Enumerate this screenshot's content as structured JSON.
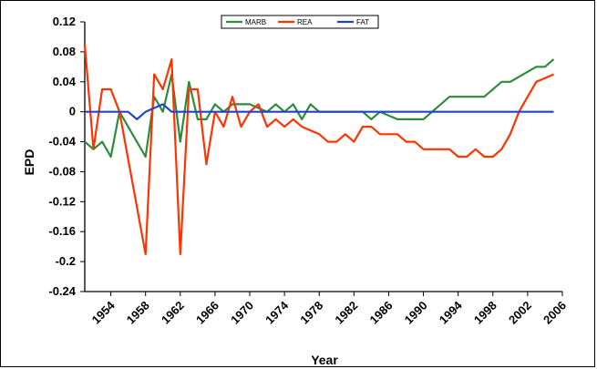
{
  "chart_data": {
    "type": "line",
    "xlabel": "Year",
    "ylabel": "EPD",
    "xlim": [
      1951,
      2006
    ],
    "ylim": [
      -0.24,
      0.12
    ],
    "y_ticks": [
      0.12,
      0.08,
      0.04,
      0,
      -0.04,
      -0.08,
      -0.12,
      -0.16,
      -0.2,
      -0.24
    ],
    "x_ticks": [
      1954,
      1958,
      1962,
      1966,
      1970,
      1974,
      1978,
      1982,
      1986,
      1990,
      1994,
      1998,
      2002,
      2006
    ],
    "grid": false,
    "legend_position": "top-center",
    "series": [
      {
        "name": "MARB",
        "color": "#2e8b3a",
        "points": [
          [
            1951,
            -0.04
          ],
          [
            1952,
            -0.05
          ],
          [
            1953,
            -0.04
          ],
          [
            1954,
            -0.06
          ],
          [
            1955,
            0
          ],
          [
            1958,
            -0.06
          ],
          [
            1959,
            0.02
          ],
          [
            1960,
            0
          ],
          [
            1961,
            0.05
          ],
          [
            1962,
            -0.04
          ],
          [
            1963,
            0.04
          ],
          [
            1964,
            -0.01
          ],
          [
            1965,
            -0.01
          ],
          [
            1966,
            0.01
          ],
          [
            1967,
            0
          ],
          [
            1968,
            0.01
          ],
          [
            1970,
            0.01
          ],
          [
            1972,
            0
          ],
          [
            1973,
            0.01
          ],
          [
            1974,
            0
          ],
          [
            1975,
            0.01
          ],
          [
            1976,
            -0.01
          ],
          [
            1977,
            0.01
          ],
          [
            1978,
            0
          ],
          [
            1983,
            0
          ],
          [
            1984,
            -0.01
          ],
          [
            1985,
            0
          ],
          [
            1987,
            -0.01
          ],
          [
            1990,
            -0.01
          ],
          [
            1992,
            0.01
          ],
          [
            1993,
            0.02
          ],
          [
            1997,
            0.02
          ],
          [
            1999,
            0.04
          ],
          [
            2000,
            0.04
          ],
          [
            2003,
            0.06
          ],
          [
            2004,
            0.06
          ],
          [
            2005,
            0.07
          ]
        ]
      },
      {
        "name": "REA",
        "color": "#ff3300",
        "points": [
          [
            1951,
            0.09
          ],
          [
            1952,
            -0.05
          ],
          [
            1953,
            0.03
          ],
          [
            1954,
            0.03
          ],
          [
            1955,
            0
          ],
          [
            1958,
            -0.19
          ],
          [
            1959,
            0.05
          ],
          [
            1960,
            0.03
          ],
          [
            1961,
            0.07
          ],
          [
            1962,
            -0.19
          ],
          [
            1963,
            0.03
          ],
          [
            1964,
            0.03
          ],
          [
            1965,
            -0.07
          ],
          [
            1966,
            0
          ],
          [
            1967,
            -0.02
          ],
          [
            1968,
            0.02
          ],
          [
            1969,
            -0.02
          ],
          [
            1970,
            0
          ],
          [
            1971,
            0.01
          ],
          [
            1972,
            -0.02
          ],
          [
            1973,
            -0.01
          ],
          [
            1974,
            -0.02
          ],
          [
            1975,
            -0.01
          ],
          [
            1976,
            -0.02
          ],
          [
            1978,
            -0.03
          ],
          [
            1979,
            -0.04
          ],
          [
            1980,
            -0.04
          ],
          [
            1981,
            -0.03
          ],
          [
            1982,
            -0.04
          ],
          [
            1983,
            -0.02
          ],
          [
            1984,
            -0.02
          ],
          [
            1985,
            -0.03
          ],
          [
            1987,
            -0.03
          ],
          [
            1988,
            -0.04
          ],
          [
            1989,
            -0.04
          ],
          [
            1990,
            -0.05
          ],
          [
            1993,
            -0.05
          ],
          [
            1994,
            -0.06
          ],
          [
            1995,
            -0.06
          ],
          [
            1996,
            -0.05
          ],
          [
            1997,
            -0.06
          ],
          [
            1998,
            -0.06
          ],
          [
            1999,
            -0.05
          ],
          [
            2000,
            -0.03
          ],
          [
            2001,
            0
          ],
          [
            2002,
            0.02
          ],
          [
            2003,
            0.04
          ],
          [
            2005,
            0.05
          ]
        ]
      },
      {
        "name": "FAT",
        "color": "#2244cc",
        "points": [
          [
            1951,
            0
          ],
          [
            1956,
            0
          ],
          [
            1957,
            -0.01
          ],
          [
            1958,
            0
          ],
          [
            1960,
            0.01
          ],
          [
            1961,
            0
          ],
          [
            2005,
            0
          ]
        ]
      }
    ]
  }
}
